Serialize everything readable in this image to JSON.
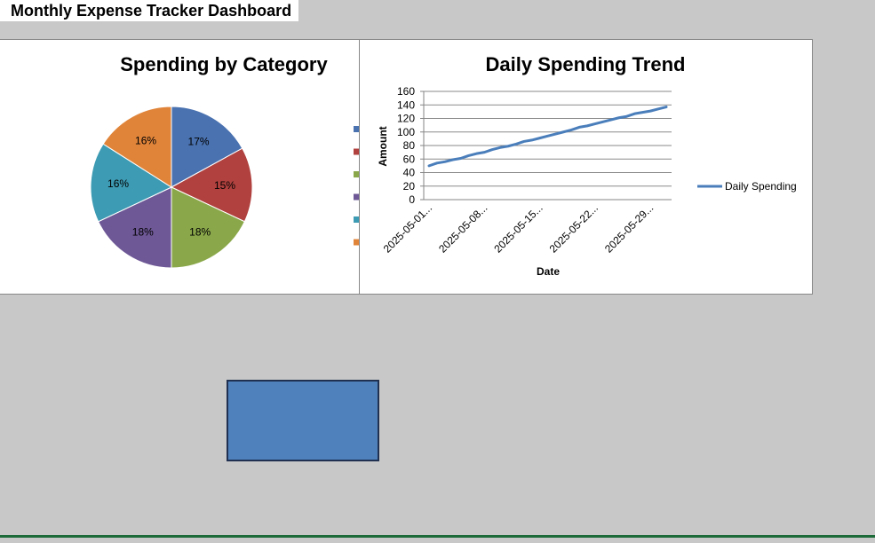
{
  "dashboard": {
    "title": "Monthly Expense Tracker Dashboard"
  },
  "chart_data": [
    {
      "type": "pie",
      "title": "Spending by Category",
      "values": [
        17,
        15,
        18,
        18,
        16,
        16
      ],
      "labels": [
        "17%",
        "15%",
        "18%",
        "18%",
        "16%",
        "16%"
      ],
      "colors": [
        "#4a72b0",
        "#b0413e",
        "#8aa84a",
        "#6e5896",
        "#3d9bb3",
        "#e0843a"
      ],
      "legend": "right"
    },
    {
      "type": "line",
      "title": "Daily Spending Trend",
      "xlabel": "Date",
      "ylabel": "Amount",
      "ylim": [
        0,
        160
      ],
      "yticks": [
        0,
        20,
        40,
        60,
        80,
        100,
        120,
        140,
        160
      ],
      "x_tick_labels": [
        "2025-05-01...",
        "2025-05-08...",
        "2025-05-15...",
        "2025-05-22...",
        "2025-05-29..."
      ],
      "x": [
        "2025-05-01",
        "2025-05-02",
        "2025-05-03",
        "2025-05-04",
        "2025-05-05",
        "2025-05-06",
        "2025-05-07",
        "2025-05-08",
        "2025-05-09",
        "2025-05-10",
        "2025-05-11",
        "2025-05-12",
        "2025-05-13",
        "2025-05-14",
        "2025-05-15",
        "2025-05-16",
        "2025-05-17",
        "2025-05-18",
        "2025-05-19",
        "2025-05-20",
        "2025-05-21",
        "2025-05-22",
        "2025-05-23",
        "2025-05-24",
        "2025-05-25",
        "2025-05-26",
        "2025-05-27",
        "2025-05-28",
        "2025-05-29",
        "2025-05-30",
        "2025-05-31"
      ],
      "series": [
        {
          "name": "Daily Spending",
          "color": "#4a7ebb",
          "values": [
            50,
            54,
            56,
            59,
            61,
            65,
            68,
            70,
            74,
            77,
            79,
            82,
            86,
            88,
            91,
            94,
            97,
            100,
            103,
            107,
            109,
            112,
            115,
            118,
            121,
            123,
            127,
            129,
            131,
            134,
            137
          ]
        }
      ],
      "grid": true,
      "legend": "right"
    }
  ]
}
